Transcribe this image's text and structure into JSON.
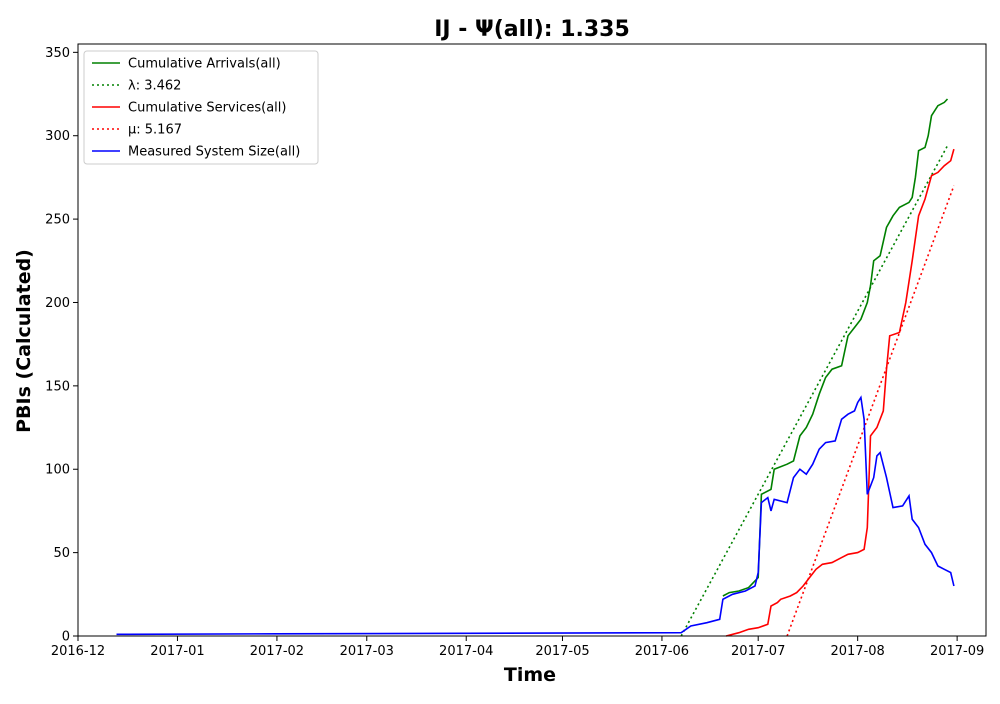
{
  "chart_data": {
    "type": "line",
    "title": "IJ -  Ψ(all): 1.335",
    "xlabel": "Time",
    "ylabel": "PBIs (Calculated)",
    "xlim": [
      "2016-12-01",
      "2017-09-10"
    ],
    "ylim": [
      0,
      355
    ],
    "x_ticks": [
      "2016-12-01",
      "2017-01-01",
      "2017-02-01",
      "2017-03-01",
      "2017-04-01",
      "2017-05-01",
      "2017-06-01",
      "2017-07-01",
      "2017-08-01",
      "2017-09-01"
    ],
    "x_tick_labels": [
      "2016-12",
      "2017-01",
      "2017-02",
      "2017-03",
      "2017-04",
      "2017-05",
      "2017-06",
      "2017-07",
      "2017-08",
      "2017-09"
    ],
    "y_ticks": [
      0,
      50,
      100,
      150,
      200,
      250,
      300,
      350
    ],
    "grid": false,
    "legend_position": "top-left",
    "series": [
      {
        "name": "Cumulative Arrivals(all)",
        "color": "#008000",
        "style": "solid",
        "points": [
          [
            "2017-06-20",
            24
          ],
          [
            "2017-06-22",
            26
          ],
          [
            "2017-06-25",
            27
          ],
          [
            "2017-06-28",
            29
          ],
          [
            "2017-07-01",
            35
          ],
          [
            "2017-07-02",
            85
          ],
          [
            "2017-07-05",
            88
          ],
          [
            "2017-07-06",
            100
          ],
          [
            "2017-07-10",
            103
          ],
          [
            "2017-07-12",
            105
          ],
          [
            "2017-07-14",
            120
          ],
          [
            "2017-07-16",
            125
          ],
          [
            "2017-07-18",
            133
          ],
          [
            "2017-07-20",
            145
          ],
          [
            "2017-07-22",
            155
          ],
          [
            "2017-07-24",
            160
          ],
          [
            "2017-07-27",
            162
          ],
          [
            "2017-07-29",
            180
          ],
          [
            "2017-07-31",
            185
          ],
          [
            "2017-08-02",
            190
          ],
          [
            "2017-08-04",
            200
          ],
          [
            "2017-08-05",
            210
          ],
          [
            "2017-08-06",
            225
          ],
          [
            "2017-08-08",
            228
          ],
          [
            "2017-08-10",
            245
          ],
          [
            "2017-08-12",
            252
          ],
          [
            "2017-08-14",
            257
          ],
          [
            "2017-08-17",
            260
          ],
          [
            "2017-08-18",
            263
          ],
          [
            "2017-08-19",
            275
          ],
          [
            "2017-08-20",
            291
          ],
          [
            "2017-08-22",
            293
          ],
          [
            "2017-08-23",
            300
          ],
          [
            "2017-08-24",
            312
          ],
          [
            "2017-08-26",
            318
          ],
          [
            "2017-08-28",
            320
          ],
          [
            "2017-08-29",
            322
          ]
        ]
      },
      {
        "name": "λ: 3.462",
        "color": "#008000",
        "style": "dotted",
        "points": [
          [
            "2017-06-07",
            0
          ],
          [
            "2017-08-29",
            294
          ]
        ]
      },
      {
        "name": "Cumulative Services(all)",
        "color": "#ff0000",
        "style": "solid",
        "points": [
          [
            "2017-06-21",
            0
          ],
          [
            "2017-06-25",
            2
          ],
          [
            "2017-06-28",
            4
          ],
          [
            "2017-07-01",
            5
          ],
          [
            "2017-07-04",
            7
          ],
          [
            "2017-07-05",
            18
          ],
          [
            "2017-07-07",
            20
          ],
          [
            "2017-07-08",
            22
          ],
          [
            "2017-07-11",
            24
          ],
          [
            "2017-07-13",
            26
          ],
          [
            "2017-07-15",
            30
          ],
          [
            "2017-07-17",
            35
          ],
          [
            "2017-07-19",
            40
          ],
          [
            "2017-07-21",
            43
          ],
          [
            "2017-07-24",
            44
          ],
          [
            "2017-07-27",
            47
          ],
          [
            "2017-07-29",
            49
          ],
          [
            "2017-08-01",
            50
          ],
          [
            "2017-08-03",
            52
          ],
          [
            "2017-08-04",
            65
          ],
          [
            "2017-08-05",
            120
          ],
          [
            "2017-08-07",
            125
          ],
          [
            "2017-08-09",
            135
          ],
          [
            "2017-08-10",
            160
          ],
          [
            "2017-08-11",
            180
          ],
          [
            "2017-08-14",
            182
          ],
          [
            "2017-08-16",
            200
          ],
          [
            "2017-08-18",
            225
          ],
          [
            "2017-08-20",
            252
          ],
          [
            "2017-08-22",
            262
          ],
          [
            "2017-08-24",
            276
          ],
          [
            "2017-08-26",
            278
          ],
          [
            "2017-08-28",
            282
          ],
          [
            "2017-08-30",
            285
          ],
          [
            "2017-08-31",
            292
          ]
        ]
      },
      {
        "name": "μ: 5.167",
        "color": "#ff0000",
        "style": "dotted",
        "points": [
          [
            "2017-07-10",
            0
          ],
          [
            "2017-08-31",
            270
          ]
        ]
      },
      {
        "name": "Measured System Size(all)",
        "color": "#0000ff",
        "style": "solid",
        "points": [
          [
            "2016-12-13",
            1
          ],
          [
            "2017-02-01",
            1.3
          ],
          [
            "2017-04-01",
            1.6
          ],
          [
            "2017-06-07",
            2
          ],
          [
            "2017-06-10",
            6
          ],
          [
            "2017-06-15",
            8
          ],
          [
            "2017-06-19",
            10
          ],
          [
            "2017-06-20",
            22
          ],
          [
            "2017-06-23",
            25
          ],
          [
            "2017-06-27",
            27
          ],
          [
            "2017-06-30",
            30
          ],
          [
            "2017-07-01",
            38
          ],
          [
            "2017-07-02",
            80
          ],
          [
            "2017-07-04",
            83
          ],
          [
            "2017-07-05",
            75
          ],
          [
            "2017-07-06",
            82
          ],
          [
            "2017-07-10",
            80
          ],
          [
            "2017-07-12",
            95
          ],
          [
            "2017-07-14",
            100
          ],
          [
            "2017-07-16",
            97
          ],
          [
            "2017-07-18",
            103
          ],
          [
            "2017-07-20",
            112
          ],
          [
            "2017-07-22",
            116
          ],
          [
            "2017-07-25",
            117
          ],
          [
            "2017-07-27",
            130
          ],
          [
            "2017-07-29",
            133
          ],
          [
            "2017-07-31",
            135
          ],
          [
            "2017-08-01",
            140
          ],
          [
            "2017-08-02",
            143
          ],
          [
            "2017-08-03",
            130
          ],
          [
            "2017-08-04",
            85
          ],
          [
            "2017-08-06",
            95
          ],
          [
            "2017-08-07",
            108
          ],
          [
            "2017-08-08",
            110
          ],
          [
            "2017-08-10",
            95
          ],
          [
            "2017-08-12",
            77
          ],
          [
            "2017-08-15",
            78
          ],
          [
            "2017-08-17",
            84
          ],
          [
            "2017-08-18",
            70
          ],
          [
            "2017-08-20",
            65
          ],
          [
            "2017-08-22",
            55
          ],
          [
            "2017-08-24",
            50
          ],
          [
            "2017-08-26",
            42
          ],
          [
            "2017-08-28",
            40
          ],
          [
            "2017-08-30",
            38
          ],
          [
            "2017-08-31",
            30
          ]
        ]
      }
    ]
  }
}
